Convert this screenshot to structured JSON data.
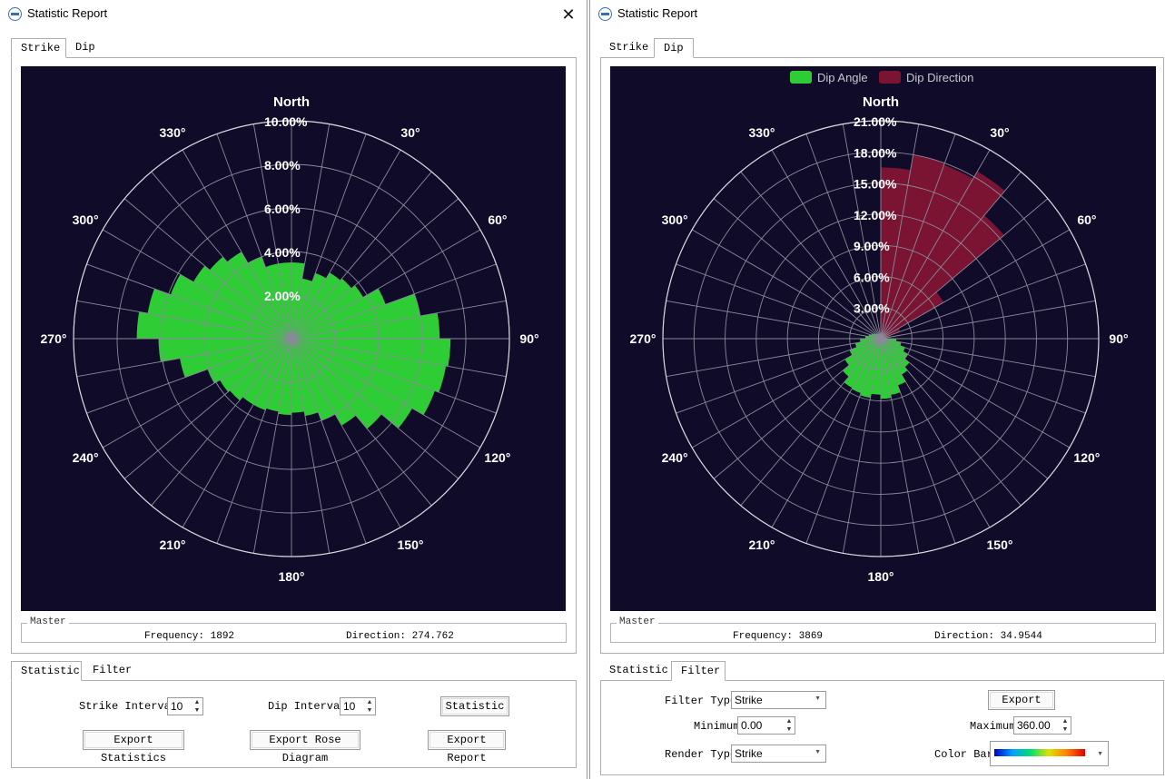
{
  "left_window": {
    "title": "Statistic Report",
    "close_label": "✕",
    "top_tabs": [
      "Strike",
      "Dip"
    ],
    "active_top_tab": "Strike",
    "group_title": "Master",
    "frequency_text": "Frequency: 1892",
    "direction_text": "Direction: 274.762",
    "bottom_tabs": [
      "Statistic",
      "Filter"
    ],
    "active_bottom_tab": "Statistic",
    "controls": {
      "strike_interval_label": "Strike Interval",
      "strike_interval_value": "10",
      "dip_interval_label": "Dip Interval",
      "dip_interval_value": "10",
      "statistic_button": "Statistic",
      "export_statistics_button": "Export Statistics",
      "export_rose_button": "Export Rose Diagram",
      "export_report_button": "Export Report"
    }
  },
  "right_window": {
    "title": "Statistic Report",
    "top_tabs": [
      "Strike",
      "Dip"
    ],
    "active_top_tab": "Dip",
    "group_title": "Master",
    "frequency_text": "Frequency: 3869",
    "direction_text": "Direction: 34.9544",
    "bottom_tabs": [
      "Statistic",
      "Filter"
    ],
    "active_bottom_tab": "Filter",
    "filter": {
      "filter_type_label": "Filter Type",
      "filter_type_value": "Strike",
      "minimum_label": "Minimum",
      "minimum_value": "0.00",
      "maximum_label": "Maximum",
      "maximum_value": "360.00",
      "render_type_label": "Render Type",
      "render_type_value": "Strike",
      "color_bar_label": "Color Bar",
      "export_button": "Export"
    }
  },
  "chart_data": [
    {
      "type": "rose",
      "north_label": "North",
      "angle_labels": [
        "30°",
        "60°",
        "90°",
        "120°",
        "150°",
        "180°",
        "210°",
        "240°",
        "270°",
        "300°",
        "330°"
      ],
      "radial_max": 10,
      "radial_ticks": [
        "2.00%",
        "4.00%",
        "6.00%",
        "8.00%",
        "10.00%"
      ],
      "bin_width_deg": 10,
      "series": [
        {
          "color": "#2ecc35",
          "start_angles": [
            0,
            10,
            20,
            30,
            40,
            50,
            60,
            70,
            80,
            90,
            100,
            110,
            120,
            130,
            140,
            150,
            160,
            170,
            180,
            190,
            200,
            210,
            220,
            230,
            240,
            250,
            260,
            270,
            280,
            290,
            300,
            310,
            320,
            330,
            340,
            350
          ],
          "values": [
            3.5,
            2.8,
            3.2,
            3.5,
            3.6,
            3.8,
            4.6,
            6.0,
            6.8,
            7.3,
            7.2,
            7.0,
            6.4,
            5.4,
            4.6,
            4.0,
            3.6,
            3.4,
            3.5,
            3.4,
            3.5,
            3.5,
            3.7,
            3.8,
            4.1,
            5.2,
            6.1,
            7.1,
            6.7,
            5.9,
            5.2,
            4.9,
            4.6,
            4.0,
            3.5,
            3.5
          ]
        }
      ]
    },
    {
      "type": "rose",
      "north_label": "North",
      "legend": [
        {
          "name": "Dip Angle",
          "color": "#2ecc35"
        },
        {
          "name": "Dip Direction",
          "color": "#7a1432"
        }
      ],
      "angle_labels": [
        "30°",
        "60°",
        "90°",
        "120°",
        "150°",
        "180°",
        "210°",
        "240°",
        "270°",
        "300°",
        "330°"
      ],
      "radial_max": 21,
      "radial_ticks": [
        "3.00%",
        "6.00%",
        "9.00%",
        "12.00%",
        "15.00%",
        "18.00%",
        "21.00%"
      ],
      "bin_width_deg": 10,
      "series": [
        {
          "name": "Dip Direction",
          "color": "#7a1432",
          "start_angles": [
            0,
            10,
            20,
            30,
            40,
            50,
            60,
            70,
            80
          ],
          "values": [
            16.5,
            18.0,
            17.8,
            18.6,
            15.5,
            7.0,
            2.0,
            1.0,
            0.5
          ]
        },
        {
          "name": "Dip Angle",
          "color": "#2ecc35",
          "start_angles": [
            90,
            100,
            110,
            120,
            130,
            140,
            150,
            160,
            170,
            180,
            190,
            200,
            210,
            220,
            230,
            240,
            250,
            260,
            270,
            280,
            290,
            300,
            310,
            320,
            330,
            340,
            350
          ],
          "values": [
            1.5,
            2.0,
            2.5,
            3.0,
            3.6,
            4.0,
            4.8,
            5.5,
            5.8,
            5.4,
            5.8,
            5.6,
            5.5,
            4.8,
            4.0,
            3.2,
            2.5,
            2.0,
            1.5,
            1.2,
            1.0,
            0.8,
            0.6,
            0.5,
            0.5,
            0.4,
            0.4
          ]
        }
      ]
    }
  ]
}
